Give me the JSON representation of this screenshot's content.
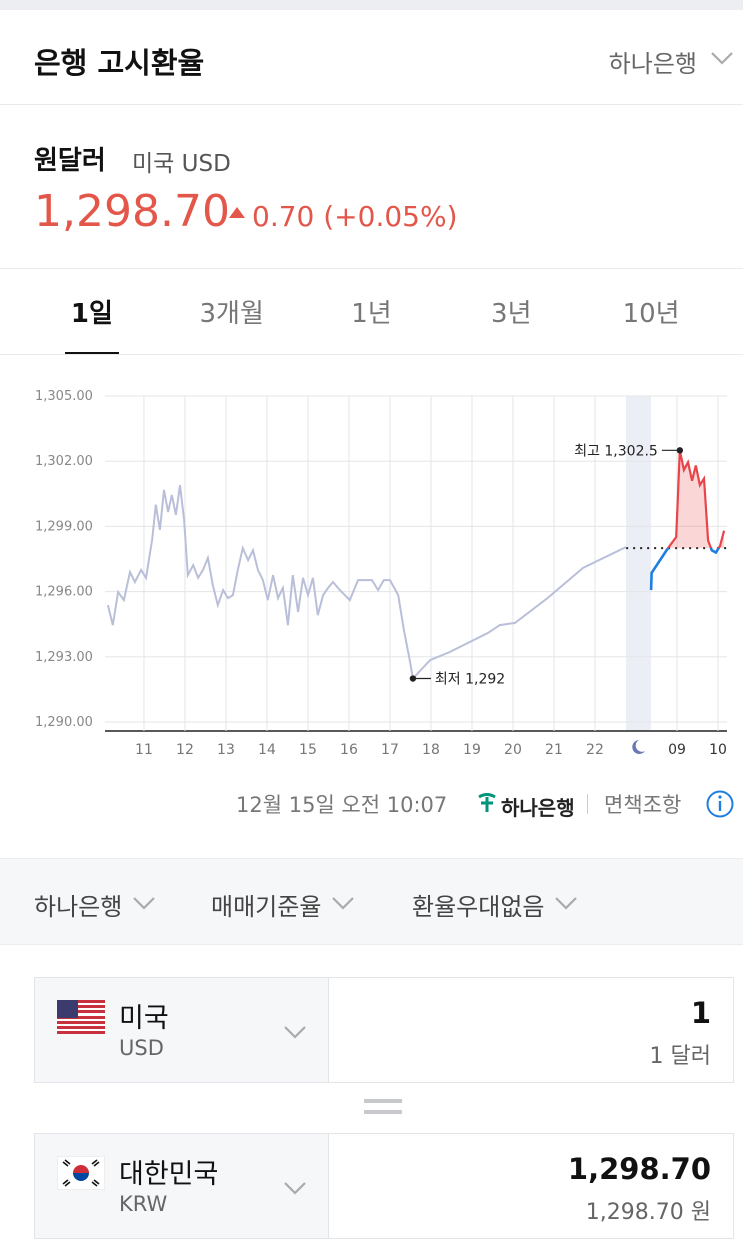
{
  "header": {
    "title": "은행 고시환율",
    "bank": "하나은행"
  },
  "rate": {
    "pair": "원달러",
    "sub": "미국 USD",
    "value": "1,298.70",
    "change": "0.70 (+0.05%)"
  },
  "tabs": {
    "items": [
      "1일",
      "3개월",
      "1년",
      "3년",
      "10년"
    ],
    "active": 0
  },
  "chart_data": {
    "type": "line",
    "xlim": [
      10.05,
      25.22
    ],
    "ylim": [
      1290,
      1305
    ],
    "xticks": [
      11,
      12,
      13,
      14,
      15,
      16,
      17,
      18,
      19,
      20,
      21,
      22,
      {
        "value": 24,
        "label": "09"
      },
      {
        "value": 25,
        "label": "10"
      }
    ],
    "yticks": [
      {
        "value": 1290,
        "label": "1,290.00"
      },
      {
        "value": 1293,
        "label": "1,293.00"
      },
      {
        "value": 1296,
        "label": "1,296.00"
      },
      {
        "value": 1299,
        "label": "1,299.00"
      },
      {
        "value": 1302,
        "label": "1,302.00"
      },
      {
        "value": 1305,
        "label": "1,305.00"
      }
    ],
    "grid": true,
    "reference": 1298,
    "series": [
      {
        "color": "#b9bfd8",
        "x": [
          10.12,
          10.24,
          10.37,
          10.51,
          10.66,
          10.78,
          10.93,
          11.05,
          11.2,
          11.29,
          11.39,
          11.49,
          11.59,
          11.68,
          11.78,
          11.88,
          11.98,
          12.07,
          12.2,
          12.32,
          12.44,
          12.56,
          12.68,
          12.8,
          12.93,
          13.05,
          13.17,
          13.29,
          13.41,
          13.54,
          13.66,
          13.78,
          13.9,
          14.02,
          14.15,
          14.27,
          14.39,
          14.51,
          14.63,
          14.76,
          14.88,
          15.0,
          15.12,
          15.24,
          15.37,
          15.49,
          15.61,
          15.78,
          16.02,
          16.22,
          16.56,
          16.71,
          16.85,
          17.0,
          17.2,
          17.34,
          17.49,
          17.56,
          17.98,
          18.46,
          19.39,
          19.68,
          20.05,
          20.85,
          21.71,
          22.76
        ],
        "values": [
          1295.38,
          1294.46,
          1295.98,
          1295.61,
          1296.9,
          1296.44,
          1297.0,
          1296.63,
          1298.4,
          1300.0,
          1298.84,
          1300.68,
          1299.66,
          1300.45,
          1299.53,
          1300.9,
          1299.3,
          1296.76,
          1297.22,
          1296.63,
          1297.0,
          1297.55,
          1296.3,
          1295.38,
          1296.07,
          1295.7,
          1295.84,
          1297.0,
          1298.0,
          1297.45,
          1297.9,
          1297.0,
          1296.53,
          1295.61,
          1296.76,
          1295.7,
          1296.17,
          1294.46,
          1296.76,
          1295.06,
          1296.63,
          1295.84,
          1296.63,
          1294.92,
          1295.84,
          1296.17,
          1296.44,
          1296.07,
          1295.61,
          1296.53,
          1296.53,
          1296.07,
          1296.53,
          1296.53,
          1295.84,
          1294.23,
          1292.76,
          1292.0,
          1292.85,
          1293.22,
          1294.1,
          1294.46,
          1294.56,
          1295.71,
          1297.09,
          1298.05
        ]
      },
      {
        "color": "#e8454a",
        "color_below": "#1e7fe0",
        "fill": "rgba(232,69,74,0.22)",
        "x": [
          23.37,
          23.38,
          23.78,
          23.98,
          24.07,
          24.17,
          24.27,
          24.37,
          24.46,
          24.56,
          24.66,
          24.76,
          24.85,
          24.95,
          25.05,
          25.15
        ],
        "values": [
          1296.07,
          1296.86,
          1298.0,
          1298.51,
          1302.5,
          1301.6,
          1301.95,
          1301.1,
          1301.8,
          1300.9,
          1301.2,
          1298.35,
          1297.9,
          1297.8,
          1298.1,
          1298.8
        ]
      }
    ],
    "annotations": [
      {
        "text": "최고 1,302.5",
        "x": 24.07,
        "y": 1302.5,
        "side": "left"
      },
      {
        "text": "최저 1,292",
        "x": 17.56,
        "y": 1292,
        "side": "right"
      }
    ]
  },
  "footer": {
    "timestamp": "12월 15일 오전 10:07",
    "brand": "하나은행",
    "disclaimer": "면책조항"
  },
  "filters": [
    "하나은행",
    "매매기준율",
    "환율우대없음"
  ],
  "converter": {
    "from": {
      "name": "미국",
      "code": "USD",
      "amount": "1",
      "amount_text": "1 달러"
    },
    "to": {
      "name": "대한민국",
      "code": "KRW",
      "amount": "1,298.70",
      "amount_text": "1,298.70 원"
    }
  }
}
